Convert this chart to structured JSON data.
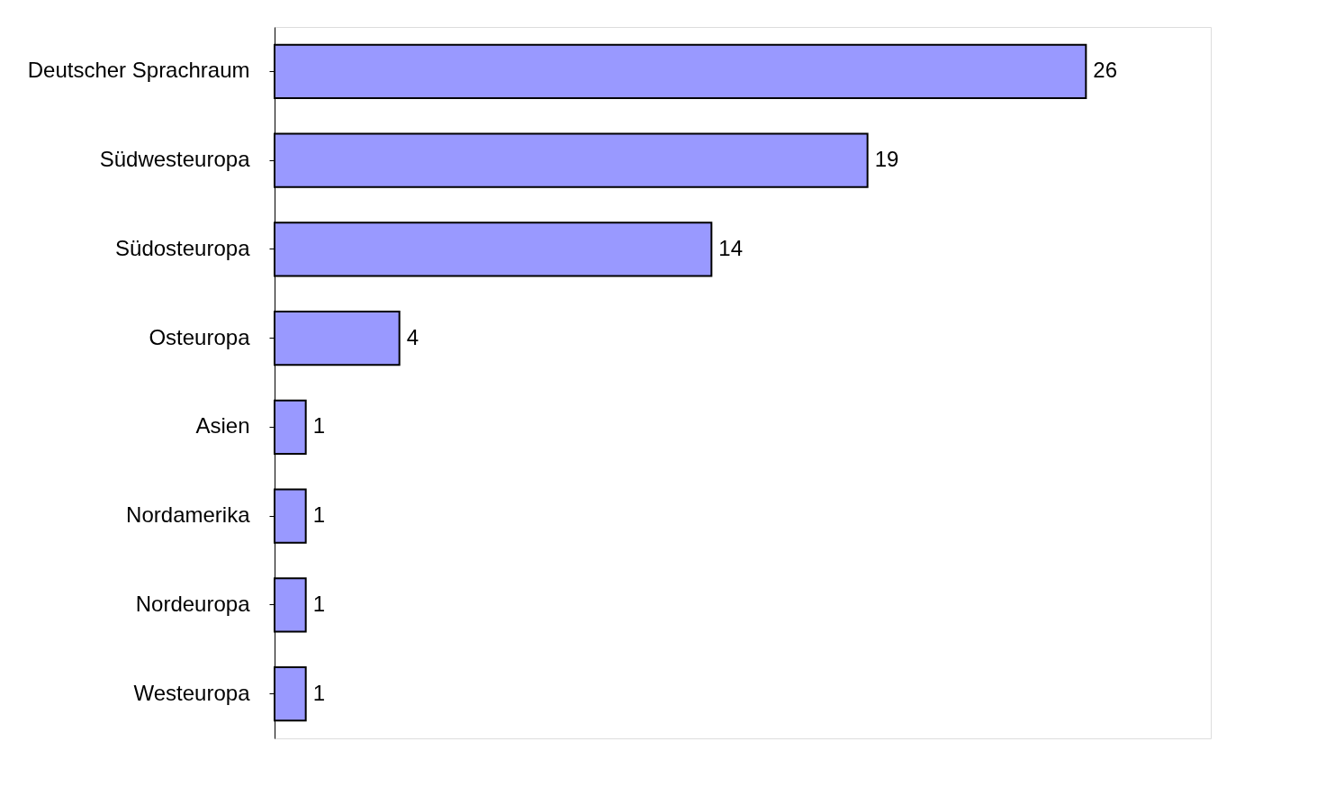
{
  "chart_data": {
    "type": "bar",
    "orientation": "horizontal",
    "categories": [
      "Deutscher Sprachraum",
      "Südwesteuropa",
      "Südosteuropa",
      "Osteuropa",
      "Asien",
      "Nordamerika",
      "Nordeuropa",
      "Westeuropa"
    ],
    "values": [
      26,
      19,
      14,
      4,
      1,
      1,
      1,
      1
    ],
    "color": "#9999ff",
    "xlim": [
      0,
      30
    ],
    "data_labels": true,
    "tick_labels": "y",
    "grid": false
  }
}
